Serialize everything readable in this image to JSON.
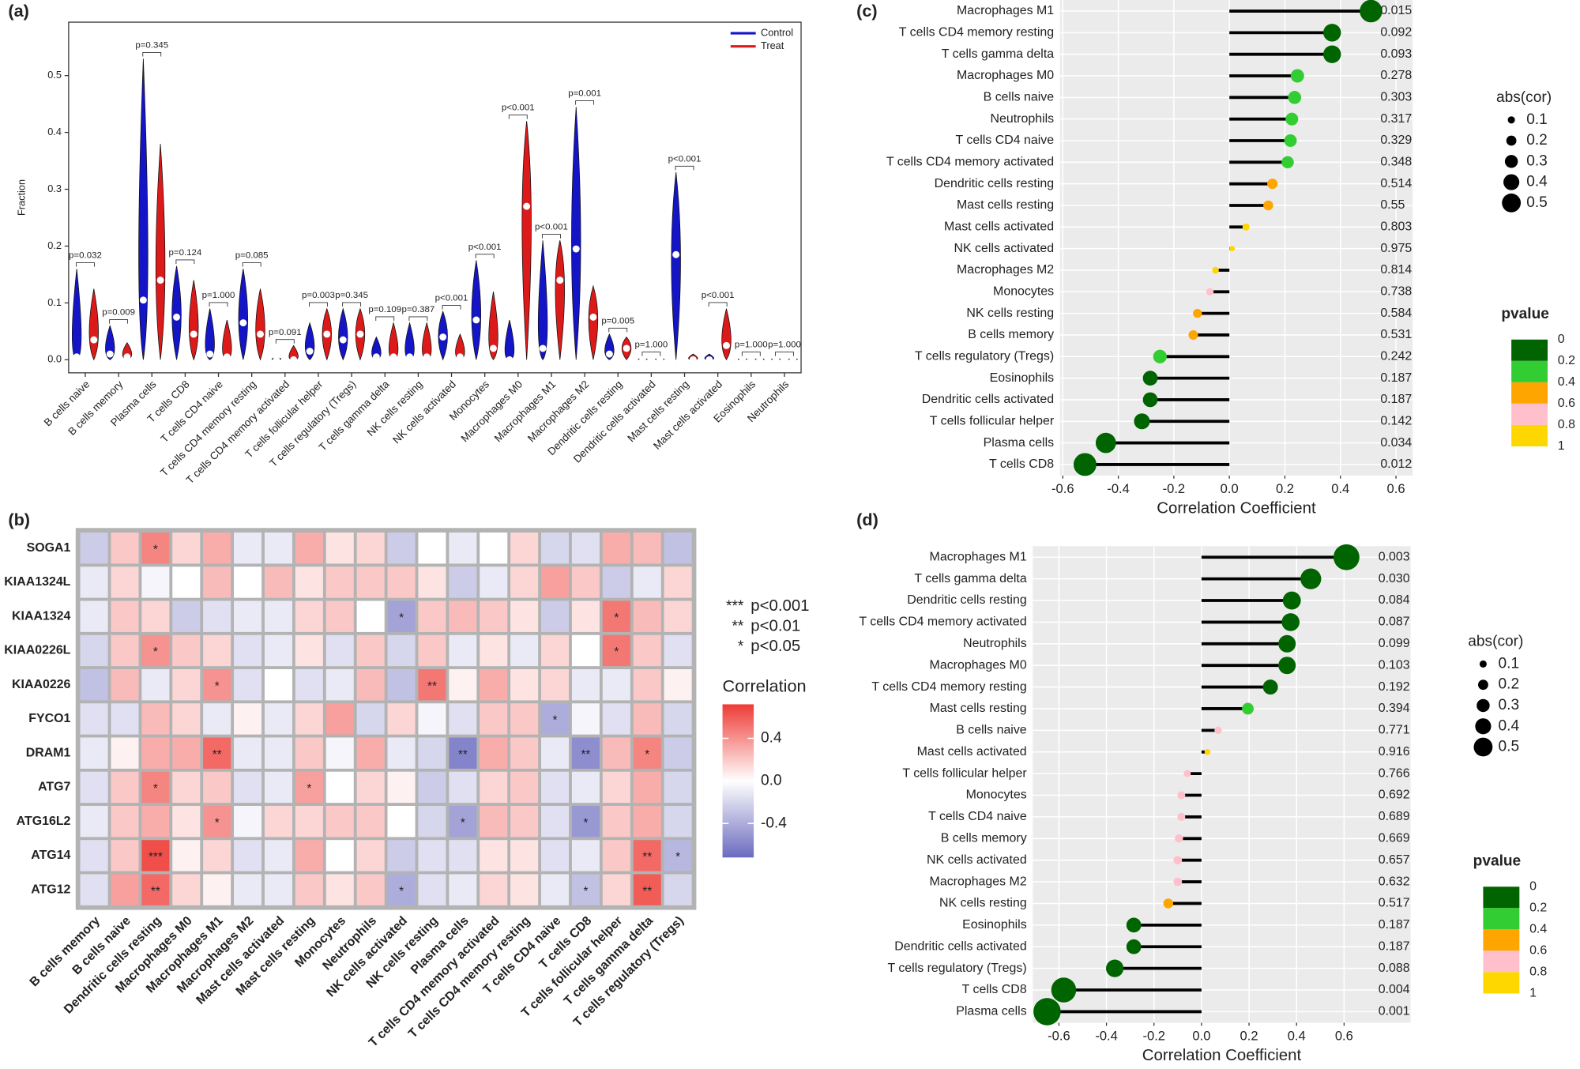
{
  "chart_data": [
    {
      "type": "violin",
      "label": "(a)",
      "ylabel": "Fraction",
      "categories": [
        "B cells naive",
        "B cells memory",
        "Plasma cells",
        "T cells CD8",
        "T cells CD4 naive",
        "T cells CD4 memory resting",
        "T cells CD4 memory activated",
        "T cells follicular helper",
        "T cells regulatory (Tregs)",
        "T cells gamma delta",
        "NK cells resting",
        "NK cells activated",
        "Monocytes",
        "Macrophages M0",
        "Macrophages M1",
        "Macrophages M2",
        "Dendritic cells resting",
        "Dendritic cells activated",
        "Mast cells resting",
        "Mast cells activated",
        "Eosinophils",
        "Neutrophils"
      ],
      "series": [
        {
          "name": "Control",
          "color": "#1515c8",
          "values": [
            0.005,
            0.01,
            0.105,
            0.075,
            0.01,
            0.065,
            0,
            0.015,
            0.035,
            0.005,
            0.005,
            0.04,
            0.07,
            0,
            0.02,
            0.195,
            0.01,
            0,
            0.185,
            0,
            0,
            0
          ],
          "max": [
            0.16,
            0.06,
            0.53,
            0.165,
            0.09,
            0.16,
            0.005,
            0.065,
            0.09,
            0.04,
            0.065,
            0.085,
            0.175,
            0.07,
            0.21,
            0.445,
            0.045,
            0.003,
            0.33,
            0.01,
            0.003,
            0.003
          ]
        },
        {
          "name": "Treat",
          "color": "#dd1a1a",
          "values": [
            0.035,
            0.005,
            0.14,
            0.045,
            0.005,
            0.045,
            0,
            0.045,
            0.045,
            0.005,
            0.005,
            0.005,
            0.02,
            0.27,
            0.14,
            0.075,
            0.02,
            0,
            0,
            0.025,
            0,
            0
          ],
          "max": [
            0.125,
            0.03,
            0.38,
            0.14,
            0.07,
            0.125,
            0.025,
            0.09,
            0.09,
            0.065,
            0.065,
            0.045,
            0.12,
            0.42,
            0.21,
            0.13,
            0.04,
            0.003,
            0.01,
            0.09,
            0.003,
            0.003
          ]
        }
      ],
      "annotations": [
        "p=0.032",
        "p=0.009",
        "p=0.345",
        "p=0.124",
        "p=1.000",
        "p=0.085",
        "p=0.091",
        "p=0.003",
        "p=0.345",
        "p=0.109",
        "p=0.387",
        "p<0.001",
        "p<0.001",
        "p<0.001",
        "p<0.001",
        "p=0.001",
        "p=0.005",
        "p=1.000",
        "p<0.001",
        "p<0.001",
        "p=1.000",
        "p=1.000"
      ],
      "ylim": [
        -0.023,
        0.594
      ],
      "yticks": [
        {
          "value": 0,
          "label": "0.0"
        },
        0.1,
        0.2,
        0.3,
        0.4,
        0.5
      ],
      "legend": "top-right"
    },
    {
      "type": "heatmap",
      "label": "(b)",
      "rows": [
        "SOGA1",
        "KIAA1324L",
        "KIAA1324",
        "KIAA0226L",
        "KIAA0226",
        "FYCO1",
        "DRAM1",
        "ATG7",
        "ATG16L2",
        "ATG14",
        "ATG12"
      ],
      "columns": [
        "B cells memory",
        "B cells naive",
        "Dendritic cells resting",
        "Macrophages M0",
        "Macrophages M1",
        "Macrophages M2",
        "Mast cells activated",
        "Mast cells resting",
        "Monocytes",
        "Neutrophils",
        "NK cells activated",
        "NK cells resting",
        "Plasma cells",
        "T cells CD4 memory activated",
        "T cells CD4 memory resting",
        "T cells CD4 naive",
        "T cells CD8",
        "T cells follicular helper",
        "T cells gamma delta",
        "T cells regulatory (Tregs)"
      ],
      "values": [
        [
          -0.25,
          0.2,
          0.45,
          0.15,
          0.3,
          -0.1,
          -0.1,
          0.3,
          0.1,
          0.15,
          -0.25,
          0,
          -0.1,
          0,
          0.15,
          -0.2,
          -0.15,
          0.3,
          0.25,
          -0.3
        ],
        [
          -0.1,
          0.15,
          -0.05,
          0,
          0.25,
          0,
          0.25,
          0.1,
          0.2,
          0.2,
          0.2,
          0.1,
          -0.25,
          -0.1,
          0.15,
          0.35,
          0.2,
          -0.25,
          -0.1,
          0.15
        ],
        [
          -0.1,
          0.2,
          0.15,
          -0.25,
          -0.15,
          -0.1,
          -0.1,
          0.15,
          0.2,
          0,
          -0.45,
          0.2,
          0.25,
          0.2,
          0.1,
          -0.25,
          0.1,
          0.5,
          0.25,
          0.15
        ],
        [
          -0.2,
          0.2,
          0.4,
          0.2,
          0.15,
          -0.15,
          -0.1,
          0.1,
          -0.15,
          0.2,
          -0.2,
          0.2,
          -0.1,
          0.1,
          -0.1,
          0.15,
          0,
          0.5,
          0.2,
          -0.15
        ],
        [
          -0.3,
          0.25,
          -0.1,
          0.15,
          0.4,
          -0.15,
          0,
          -0.15,
          -0.1,
          0.25,
          -0.3,
          0.5,
          0.05,
          0.3,
          0.1,
          0.15,
          -0.1,
          -0.1,
          0.2,
          0.05
        ],
        [
          -0.15,
          -0.15,
          0.25,
          0.15,
          -0.1,
          0.05,
          -0.1,
          0.15,
          0.35,
          -0.2,
          0.15,
          -0.05,
          -0.15,
          0.2,
          0.2,
          -0.4,
          -0.05,
          -0.15,
          0.25,
          -0.2
        ],
        [
          -0.1,
          0.05,
          0.3,
          0.3,
          0.55,
          -0.1,
          -0.1,
          0.2,
          -0.05,
          0.3,
          -0.1,
          -0.2,
          -0.6,
          0.3,
          0.2,
          -0.1,
          -0.55,
          0.25,
          0.45,
          -0.25
        ],
        [
          -0.15,
          0.2,
          0.45,
          0.15,
          0.2,
          -0.15,
          -0.1,
          0.35,
          0,
          0.15,
          0.05,
          -0.25,
          -0.15,
          0.15,
          0.2,
          -0.15,
          -0.1,
          0.15,
          0.3,
          -0.2
        ],
        [
          -0.1,
          0.2,
          0.3,
          0.1,
          0.4,
          -0.05,
          0.15,
          0.15,
          0.2,
          0.2,
          0,
          -0.2,
          -0.45,
          0.25,
          0.2,
          -0.15,
          -0.5,
          0.2,
          0.3,
          -0.2
        ],
        [
          -0.15,
          0.2,
          0.65,
          0.05,
          0.15,
          -0.15,
          -0.1,
          0.3,
          0,
          0.15,
          -0.25,
          -0.15,
          -0.15,
          0.1,
          0.1,
          -0.15,
          -0.1,
          0.2,
          0.55,
          -0.35
        ],
        [
          -0.15,
          0.35,
          0.55,
          0.15,
          0.05,
          -0.1,
          -0.1,
          0.2,
          0.1,
          0.2,
          -0.4,
          -0.15,
          -0.1,
          0.15,
          0.1,
          -0.1,
          -0.3,
          0.15,
          0.6,
          -0.2
        ]
      ],
      "stars": [
        [
          null,
          null,
          "*",
          null,
          null,
          null,
          null,
          null,
          null,
          null,
          null,
          null,
          null,
          null,
          null,
          null,
          null,
          null,
          null,
          null
        ],
        [
          null,
          null,
          null,
          null,
          null,
          null,
          null,
          null,
          null,
          null,
          null,
          null,
          null,
          null,
          null,
          null,
          null,
          null,
          null,
          null
        ],
        [
          null,
          null,
          null,
          null,
          null,
          null,
          null,
          null,
          null,
          null,
          "*",
          null,
          null,
          null,
          null,
          null,
          null,
          "*",
          null,
          null
        ],
        [
          null,
          null,
          "*",
          null,
          null,
          null,
          null,
          null,
          null,
          null,
          null,
          null,
          null,
          null,
          null,
          null,
          null,
          "*",
          null,
          null
        ],
        [
          null,
          null,
          null,
          null,
          "*",
          null,
          null,
          null,
          null,
          null,
          null,
          "**",
          null,
          null,
          null,
          null,
          null,
          null,
          null,
          null
        ],
        [
          null,
          null,
          null,
          null,
          null,
          null,
          null,
          null,
          null,
          null,
          null,
          null,
          null,
          null,
          null,
          "*",
          null,
          null,
          null,
          null
        ],
        [
          null,
          null,
          null,
          null,
          "**",
          null,
          null,
          null,
          null,
          null,
          null,
          null,
          "**",
          null,
          null,
          null,
          "**",
          null,
          "*",
          null
        ],
        [
          null,
          null,
          "*",
          null,
          null,
          null,
          null,
          "*",
          null,
          null,
          null,
          null,
          null,
          null,
          null,
          null,
          null,
          null,
          null,
          null
        ],
        [
          null,
          null,
          null,
          null,
          "*",
          null,
          null,
          null,
          null,
          null,
          null,
          null,
          "*",
          null,
          null,
          null,
          "*",
          null,
          null,
          null
        ],
        [
          null,
          null,
          "***",
          null,
          null,
          null,
          null,
          null,
          null,
          null,
          null,
          null,
          null,
          null,
          null,
          null,
          null,
          null,
          "**",
          "*"
        ],
        [
          null,
          null,
          "**",
          null,
          null,
          null,
          null,
          null,
          null,
          null,
          "*",
          null,
          null,
          null,
          null,
          null,
          "*",
          null,
          "**",
          null
        ]
      ],
      "clim": [
        -0.72,
        0.72
      ],
      "colors": [
        "#6b6bbf",
        "#ffffff",
        "#ee3b35"
      ],
      "colorbar_title": "Correlation",
      "colorbar_ticks": [
        -0.4,
        {
          "value": 0,
          "label": "0.0"
        },
        0.4
      ],
      "significance_legend": [
        {
          "symbol": "***",
          "label": "p<0.001"
        },
        {
          "symbol": "**",
          "label": "p<0.01"
        },
        {
          "symbol": "*",
          "label": "p<0.05"
        }
      ]
    },
    {
      "type": "lollipop",
      "label": "(c)",
      "xlabel": "Correlation Coefficient",
      "categories": [
        "Macrophages M1",
        "T cells CD4 memory resting",
        "T cells gamma delta",
        "Macrophages M0",
        "B cells naive",
        "Neutrophils",
        "T cells CD4 naive",
        "T cells CD4 memory activated",
        "Dendritic cells resting",
        "Mast cells resting",
        "Mast cells activated",
        "NK cells activated",
        "Macrophages M2",
        "Monocytes",
        "NK cells resting",
        "B cells memory",
        "T cells regulatory (Tregs)",
        "Eosinophils",
        "Dendritic cells activated",
        "T cells follicular helper",
        "Plasma cells",
        "T cells CD8"
      ],
      "values": [
        0.51,
        0.37,
        0.37,
        0.245,
        0.235,
        0.225,
        0.22,
        0.21,
        0.155,
        0.14,
        0.06,
        0.01,
        -0.05,
        -0.07,
        -0.115,
        -0.13,
        -0.25,
        -0.285,
        -0.285,
        -0.315,
        -0.445,
        -0.52
      ],
      "pvalues": [
        0.015,
        0.092,
        0.093,
        0.278,
        0.303,
        0.317,
        0.329,
        0.348,
        0.514,
        0.55,
        0.803,
        0.975,
        0.814,
        0.738,
        0.584,
        0.531,
        0.242,
        0.187,
        0.187,
        0.142,
        0.034,
        0.012
      ],
      "xlim": [
        -0.61,
        0.66
      ],
      "xticks": [
        -0.6,
        -0.4,
        -0.2,
        {
          "value": 0,
          "label": "0.0"
        },
        0.2,
        0.4,
        0.6
      ],
      "size_title": "abs(cor)",
      "size_ticks": [
        0.1,
        0.2,
        0.3,
        0.4,
        0.5
      ],
      "color_title": "pvalue",
      "color_ticks": [
        0,
        0.2,
        0.4,
        0.6,
        0.8,
        1
      ],
      "colors": [
        "#006400",
        "#32cd32",
        "#ffa500",
        "#ffc0cb",
        "#ffd700"
      ],
      "stem_color": "#000000",
      "highlight_below": 0.05,
      "highlight_color": "#e41a1c",
      "grid": true
    },
    {
      "type": "lollipop",
      "label": "(d)",
      "xlabel": "Correlation Coefficient",
      "categories": [
        "Macrophages M1",
        "T cells gamma delta",
        "Dendritic cells resting",
        "T cells CD4 memory activated",
        "Neutrophils",
        "Macrophages M0",
        "T cells CD4 memory resting",
        "Mast cells resting",
        "B cells naive",
        "Mast cells activated",
        "T cells follicular helper",
        "Monocytes",
        "T cells CD4 naive",
        "B cells memory",
        "NK cells activated",
        "Macrophages M2",
        "NK cells resting",
        "Eosinophils",
        "Dendritic cells activated",
        "T cells regulatory (Tregs)",
        "T cells CD8",
        "Plasma cells"
      ],
      "values": [
        0.61,
        0.46,
        0.38,
        0.375,
        0.36,
        0.36,
        0.29,
        0.195,
        0.07,
        0.025,
        -0.06,
        -0.085,
        -0.085,
        -0.095,
        -0.1,
        -0.1,
        -0.14,
        -0.285,
        -0.285,
        -0.365,
        -0.58,
        -0.65
      ],
      "pvalues": [
        0.003,
        {
          "value": 0.03,
          "label": "0.030"
        },
        0.084,
        0.087,
        0.099,
        0.103,
        0.192,
        0.394,
        0.771,
        0.916,
        0.766,
        0.692,
        0.689,
        0.669,
        0.657,
        0.632,
        0.517,
        0.187,
        0.187,
        0.088,
        0.004,
        0.001
      ],
      "xlim": [
        -0.71,
        0.88
      ],
      "xticks": [
        -0.6,
        -0.4,
        -0.2,
        {
          "value": 0,
          "label": "0.0"
        },
        0.2,
        0.4,
        0.6
      ],
      "size_title": "abs(cor)",
      "size_ticks": [
        0.1,
        0.2,
        0.3,
        0.4,
        0.5
      ],
      "color_title": "pvalue",
      "color_ticks": [
        0,
        0.2,
        0.4,
        0.6,
        0.8,
        1
      ],
      "colors": [
        "#006400",
        "#32cd32",
        "#ffa500",
        "#ffc0cb",
        "#ffd700"
      ],
      "stem_color": "#000000",
      "highlight_below": 0.05,
      "highlight_color": "#e41a1c",
      "grid": true
    }
  ]
}
